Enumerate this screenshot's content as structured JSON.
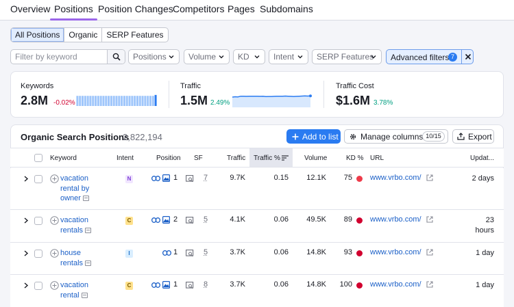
{
  "nav": {
    "tabs": [
      {
        "label": "Overview"
      },
      {
        "label": "Positions",
        "active": true
      },
      {
        "label": "Position Changes"
      },
      {
        "label": "Competitors"
      },
      {
        "label": "Pages"
      },
      {
        "label": "Subdomains"
      }
    ]
  },
  "segments": [
    {
      "label": "All Positions",
      "selected": true
    },
    {
      "label": "Organic"
    },
    {
      "label": "SERP Features"
    }
  ],
  "filters": {
    "search_placeholder": "Filter by keyword",
    "dropdowns": [
      "Positions",
      "Volume",
      "KD",
      "Intent",
      "SERP Features"
    ],
    "advanced_label": "Advanced filters",
    "advanced_count": "7"
  },
  "summary": {
    "keywords": {
      "label": "Keywords",
      "value": "2.8M",
      "delta": "-0.02%",
      "trend": [
        0.55,
        0.55,
        0.55,
        0.55,
        0.55,
        0.55,
        0.55,
        0.55,
        0.55,
        0.55,
        0.55,
        0.55,
        0.55,
        0.55,
        0.55,
        0.55,
        0.55,
        0.55,
        0.55,
        0.55,
        0.55,
        0.55,
        0.55,
        0.55,
        0.55,
        0.55,
        0.55,
        0.55,
        0.55,
        0.55,
        0.6
      ]
    },
    "traffic": {
      "label": "Traffic",
      "value": "1.5M",
      "delta": "2.49%",
      "trend": [
        0.72,
        0.74,
        0.73,
        0.78,
        0.78,
        0.77,
        0.78,
        0.78,
        0.78,
        0.78,
        0.77,
        0.78,
        0.75,
        0.76,
        0.76,
        0.77,
        0.78,
        0.78,
        0.78,
        0.79,
        0.78,
        0.77,
        0.76,
        0.77,
        0.78,
        0.79,
        0.8,
        0.79,
        0.8
      ]
    },
    "traffic_cost": {
      "label": "Traffic Cost",
      "value": "$1.6M",
      "delta": "3.78%"
    }
  },
  "table": {
    "title": "Organic Search Positions",
    "count": "2,822,194",
    "add_button": "Add to list",
    "manage_button": "Manage columns",
    "manage_count": "10/15",
    "export_button": "Export",
    "columns": {
      "keyword": "Keyword",
      "intent": "Intent",
      "position": "Position",
      "sf": "SF",
      "traffic": "Traffic",
      "traffic_pct": "Traffic %",
      "volume": "Volume",
      "kd": "KD %",
      "url": "URL",
      "updated": "Updat..."
    },
    "rows": [
      {
        "keyword": "vacation rental by owner",
        "kw_lines": [
          "vacation",
          "rental by",
          "owner"
        ],
        "intent": "N",
        "position": "1",
        "sf": "7",
        "traffic": "9.7K",
        "traffic_pct": "0.15",
        "volume": "12.1K",
        "kd": "75",
        "url": "www.vrbo.com/",
        "updated": "2 days",
        "upd_lines": [
          "2 days"
        ]
      },
      {
        "keyword": "vacation rentals",
        "kw_lines": [
          "vacation",
          "rentals"
        ],
        "intent": "C",
        "position": "2",
        "sf": "5",
        "traffic": "4.1K",
        "traffic_pct": "0.06",
        "volume": "49.5K",
        "kd": "89",
        "url": "www.vrbo.com/",
        "updated": "23 hours",
        "upd_lines": [
          "23",
          "hours"
        ]
      },
      {
        "keyword": "house rentals",
        "kw_lines": [
          "house",
          "rentals"
        ],
        "intent": "I",
        "position": "1",
        "sf": "5",
        "traffic": "3.7K",
        "traffic_pct": "0.06",
        "volume": "14.8K",
        "kd": "93",
        "url": "www.vrbo.com/",
        "updated": "1 day",
        "upd_lines": [
          "1 day"
        ]
      },
      {
        "keyword": "vacation rental",
        "kw_lines": [
          "vacation",
          "rental"
        ],
        "intent": "C",
        "position": "1",
        "sf": "8",
        "traffic": "3.7K",
        "traffic_pct": "0.06",
        "volume": "14.8K",
        "kd": "100",
        "url": "www.vrbo.com/",
        "updated": "1 day",
        "upd_lines": [
          "1 day"
        ]
      }
    ]
  }
}
